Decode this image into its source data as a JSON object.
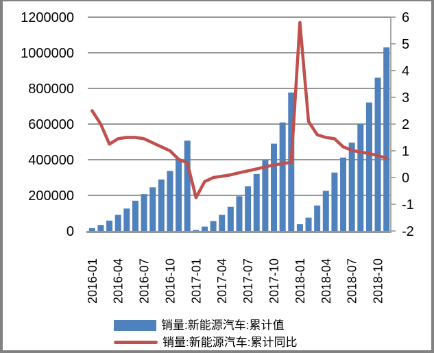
{
  "frame": {
    "border_color": "#828282"
  },
  "chart_data": {
    "type": "bar",
    "title": "",
    "categories": [
      "2016-01",
      "2016-02",
      "2016-03",
      "2016-04",
      "2016-05",
      "2016-06",
      "2016-07",
      "2016-08",
      "2016-09",
      "2016-10",
      "2016-11",
      "2016-12",
      "2017-01",
      "2017-02",
      "2017-03",
      "2017-04",
      "2017-05",
      "2017-06",
      "2017-07",
      "2017-08",
      "2017-09",
      "2017-10",
      "2017-11",
      "2017-12",
      "2018-01",
      "2018-02",
      "2018-03",
      "2018-04",
      "2018-05",
      "2018-06",
      "2018-07",
      "2018-08",
      "2018-09",
      "2018-10",
      "2018-11"
    ],
    "series": [
      {
        "name": "销量:新能源汽车:累计值",
        "type": "bar",
        "axis": "left",
        "color": "#4F81BD",
        "values": [
          16100,
          33700,
          58400,
          90600,
          126000,
          170000,
          207000,
          245000,
          289000,
          337000,
          403000,
          507000,
          5700,
          24800,
          55600,
          90400,
          135600,
          195000,
          251000,
          320000,
          398000,
          490000,
          609000,
          777000,
          38100,
          74600,
          143000,
          225000,
          328000,
          412000,
          496000,
          601000,
          721000,
          860000,
          1030000
        ]
      },
      {
        "name": "销量:新能源汽车:累计同比",
        "type": "line",
        "axis": "right",
        "color": "#C0504D",
        "values": [
          2.5,
          2.0,
          1.25,
          1.45,
          1.5,
          1.5,
          1.45,
          1.3,
          1.15,
          1.0,
          0.68,
          0.55,
          -0.75,
          -0.15,
          0.0,
          0.05,
          0.1,
          0.18,
          0.25,
          0.32,
          0.4,
          0.47,
          0.52,
          0.57,
          5.8,
          2.1,
          1.6,
          1.5,
          1.45,
          1.15,
          1.02,
          0.95,
          0.9,
          0.82,
          0.72
        ]
      }
    ],
    "left_axis": {
      "min": 0,
      "max": 1200000,
      "tick_step": 200000,
      "tick_labels": [
        "0",
        "200000",
        "400000",
        "600000",
        "800000",
        "1000000",
        "1200000"
      ]
    },
    "right_axis": {
      "min": -2,
      "max": 6,
      "tick_step": 1,
      "tick_labels": [
        "-2",
        "-1",
        "0",
        "1",
        "2",
        "3",
        "4",
        "5",
        "6"
      ]
    },
    "x_tick_step": 3,
    "x_tick_labels": [
      "2016-01",
      "2016-04",
      "2016-07",
      "2016-10",
      "2017-01",
      "2017-04",
      "2017-07",
      "2017-10",
      "2018-01",
      "2018-04",
      "2018-07",
      "2018-10"
    ],
    "gridlines": true,
    "gridline_color": "#969696",
    "bottom_axis_color": "#969696",
    "right_axis_line_color": "#A6A6A6",
    "axis_label_color": "#000000",
    "legend_position": "bottom"
  },
  "legend": {
    "items": [
      {
        "label": "销量:新能源汽车:累计值",
        "color": "#4F81BD",
        "marker": "bar"
      },
      {
        "label": "销量:新能源汽车:累计同比",
        "color": "#C0504D",
        "marker": "line"
      }
    ]
  }
}
